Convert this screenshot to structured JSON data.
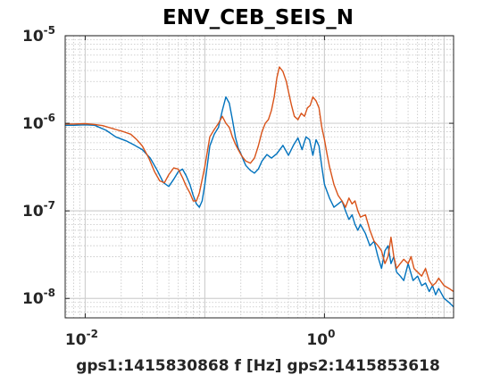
{
  "chart_data": {
    "type": "line",
    "title": "ENV_CEB_SEIS_N",
    "xlabel": "gps1:1415830868  f [Hz]   gps2:1415853618",
    "ylabel": "",
    "xscale": "log",
    "yscale": "log",
    "xlim": [
      0.0068,
      12
    ],
    "ylim": [
      6e-09,
      1e-05
    ],
    "grid": true,
    "legend": "none",
    "x_ticks": [
      {
        "value": 0.01,
        "base": "10",
        "exp": "-2"
      },
      {
        "value": 1,
        "base": "10",
        "exp": "0"
      }
    ],
    "y_ticks": [
      {
        "value": 1e-05,
        "base": "10",
        "exp": "-5"
      },
      {
        "value": 1e-06,
        "base": "10",
        "exp": "-6"
      },
      {
        "value": 1e-07,
        "base": "10",
        "exp": "-7"
      },
      {
        "value": 1e-08,
        "base": "10",
        "exp": "-8"
      }
    ],
    "series": [
      {
        "color": "#0072bd",
        "x": [
          0.0068,
          0.008,
          0.01,
          0.012,
          0.015,
          0.018,
          0.022,
          0.026,
          0.03,
          0.035,
          0.04,
          0.045,
          0.05,
          0.055,
          0.06,
          0.065,
          0.07,
          0.075,
          0.08,
          0.085,
          0.09,
          0.095,
          0.1,
          0.11,
          0.12,
          0.13,
          0.14,
          0.15,
          0.16,
          0.17,
          0.18,
          0.19,
          0.2,
          0.21,
          0.22,
          0.24,
          0.26,
          0.28,
          0.3,
          0.33,
          0.36,
          0.4,
          0.45,
          0.5,
          0.55,
          0.6,
          0.65,
          0.7,
          0.75,
          0.8,
          0.85,
          0.9,
          0.95,
          1.0,
          1.1,
          1.2,
          1.3,
          1.4,
          1.5,
          1.6,
          1.7,
          1.8,
          1.9,
          2.0,
          2.2,
          2.4,
          2.6,
          2.8,
          3.0,
          3.2,
          3.4,
          3.6,
          3.8,
          4.0,
          4.3,
          4.6,
          5.0,
          5.5,
          6.0,
          6.5,
          7.0,
          7.5,
          8.0,
          8.5,
          9.0,
          10.0,
          11.0,
          12.0
        ],
        "y": [
          9.5e-07,
          9.5e-07,
          9.6e-07,
          9.5e-07,
          8.3e-07,
          7e-07,
          6.3e-07,
          5.6e-07,
          5e-07,
          4e-07,
          2.9e-07,
          2.1e-07,
          1.9e-07,
          2.3e-07,
          2.8e-07,
          3e-07,
          2.5e-07,
          2e-07,
          1.5e-07,
          1.2e-07,
          1.1e-07,
          1.3e-07,
          2e-07,
          5.5e-07,
          7.5e-07,
          9e-07,
          1.4e-06,
          2e-06,
          1.7e-06,
          1.1e-06,
          7e-07,
          5.2e-07,
          4.5e-07,
          3.8e-07,
          3.3e-07,
          2.9e-07,
          2.7e-07,
          3e-07,
          3.7e-07,
          4.4e-07,
          4e-07,
          4.5e-07,
          5.6e-07,
          4.3e-07,
          5.6e-07,
          6.8e-07,
          5e-07,
          7e-07,
          6.5e-07,
          4.3e-07,
          6.5e-07,
          5.5e-07,
          3.2e-07,
          2e-07,
          1.4e-07,
          1.1e-07,
          1.2e-07,
          1.3e-07,
          1e-07,
          8e-08,
          9e-08,
          7e-08,
          6e-08,
          7e-08,
          5.5e-08,
          4e-08,
          4.5e-08,
          3e-08,
          2.2e-08,
          3.5e-08,
          4e-08,
          2.5e-08,
          3e-08,
          2e-08,
          1.8e-08,
          1.6e-08,
          2.5e-08,
          1.6e-08,
          1.8e-08,
          1.4e-08,
          1.5e-08,
          1.2e-08,
          1.4e-08,
          1.1e-08,
          1.3e-08,
          1e-08,
          9e-09,
          8e-09
        ]
      },
      {
        "color": "#d95319",
        "x": [
          0.0068,
          0.008,
          0.01,
          0.012,
          0.014,
          0.016,
          0.018,
          0.021,
          0.024,
          0.027,
          0.03,
          0.034,
          0.038,
          0.042,
          0.046,
          0.05,
          0.055,
          0.06,
          0.065,
          0.07,
          0.075,
          0.08,
          0.085,
          0.09,
          0.1,
          0.11,
          0.12,
          0.13,
          0.14,
          0.15,
          0.16,
          0.17,
          0.18,
          0.19,
          0.2,
          0.21,
          0.22,
          0.24,
          0.26,
          0.28,
          0.3,
          0.32,
          0.34,
          0.36,
          0.38,
          0.4,
          0.42,
          0.45,
          0.48,
          0.5,
          0.53,
          0.56,
          0.6,
          0.64,
          0.68,
          0.72,
          0.76,
          0.8,
          0.85,
          0.9,
          0.95,
          1.0,
          1.05,
          1.1,
          1.2,
          1.3,
          1.4,
          1.5,
          1.6,
          1.7,
          1.8,
          1.9,
          2.0,
          2.2,
          2.4,
          2.6,
          2.8,
          3.0,
          3.2,
          3.4,
          3.6,
          3.8,
          4.0,
          4.3,
          4.6,
          5.0,
          5.3,
          5.6,
          6.0,
          6.5,
          7.0,
          7.5,
          8.0,
          8.5,
          9.0,
          10.0,
          11.0,
          12.0
        ],
        "y": [
          9.8e-07,
          9.8e-07,
          9.9e-07,
          9.7e-07,
          9.4e-07,
          8.9e-07,
          8.5e-07,
          8e-07,
          7.5e-07,
          6.5e-07,
          5.5e-07,
          4e-07,
          2.8e-07,
          2.2e-07,
          2.1e-07,
          2.6e-07,
          3.1e-07,
          3e-07,
          2.4e-07,
          1.9e-07,
          1.6e-07,
          1.3e-07,
          1.3e-07,
          1.6e-07,
          3.2e-07,
          7e-07,
          8.5e-07,
          1e-06,
          1.2e-06,
          1e-06,
          9e-07,
          7e-07,
          5.8e-07,
          5e-07,
          4.4e-07,
          4e-07,
          3.7e-07,
          3.5e-07,
          4e-07,
          5.5e-07,
          8e-07,
          1e-06,
          1.1e-06,
          1.4e-06,
          2e-06,
          3.3e-06,
          4.4e-06,
          3.9e-06,
          3e-06,
          2.3e-06,
          1.6e-06,
          1.2e-06,
          1.1e-06,
          1.3e-06,
          1.2e-06,
          1.5e-06,
          1.6e-06,
          2e-06,
          1.8e-06,
          1.5e-06,
          9e-07,
          6.5e-07,
          4.5e-07,
          3.2e-07,
          2e-07,
          1.5e-07,
          1.3e-07,
          1.1e-07,
          1.4e-07,
          1.2e-07,
          1.3e-07,
          1e-07,
          8.5e-08,
          9e-08,
          6e-08,
          4.5e-08,
          4e-08,
          3.5e-08,
          2.5e-08,
          3e-08,
          5e-08,
          3e-08,
          2.2e-08,
          2.5e-08,
          2.8e-08,
          2.5e-08,
          3e-08,
          2.2e-08,
          2e-08,
          1.8e-08,
          2.2e-08,
          1.6e-08,
          1.4e-08,
          1.5e-08,
          1.7e-08,
          1.4e-08,
          1.3e-08,
          1.2e-08
        ]
      }
    ]
  }
}
